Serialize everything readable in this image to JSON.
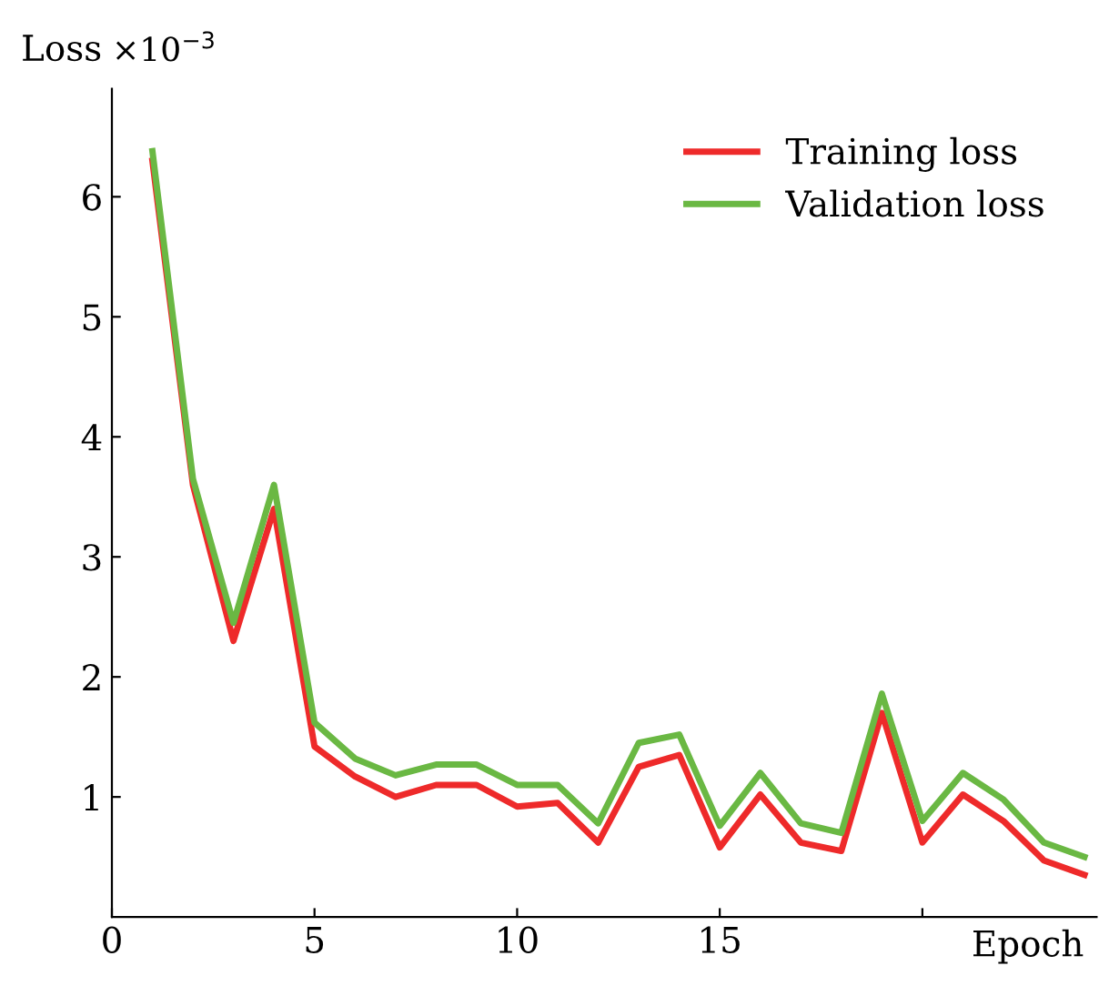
{
  "chart_data": {
    "type": "line",
    "xlabel": "Epoch",
    "ylabel": "Loss",
    "annotations": [
      "×10$^{−3}$"
    ],
    "x": [
      1,
      2,
      3,
      4,
      5,
      6,
      7,
      8,
      9,
      10,
      11,
      12,
      13,
      14,
      15,
      16,
      17,
      18,
      19,
      20,
      21,
      22,
      23,
      24
    ],
    "series": [
      {
        "name": "Training loss",
        "color": "#ee2a2a",
        "values": [
          6.3,
          3.6,
          2.3,
          3.4,
          1.42,
          1.17,
          1.0,
          1.1,
          1.1,
          0.92,
          0.95,
          0.62,
          1.25,
          1.35,
          0.58,
          1.02,
          0.62,
          0.55,
          1.7,
          0.62,
          1.02,
          0.8,
          0.47,
          0.35
        ]
      },
      {
        "name": "Validation loss",
        "color": "#6ab843",
        "values": [
          6.38,
          3.65,
          2.45,
          3.6,
          1.62,
          1.32,
          1.18,
          1.27,
          1.27,
          1.1,
          1.1,
          0.78,
          1.45,
          1.52,
          0.76,
          1.2,
          0.78,
          0.7,
          1.86,
          0.8,
          1.2,
          0.98,
          0.62,
          0.5
        ]
      }
    ],
    "xlim": [
      0,
      24.3
    ],
    "ylim": [
      0,
      6.9
    ],
    "xticks": [
      0,
      5,
      10,
      15,
      {
        "value": 20,
        "label": null
      }
    ],
    "yticks": [
      1,
      2,
      3,
      4,
      5,
      6
    ],
    "legend": "top right",
    "grid": false,
    "marker": "none",
    "line_style": "solid"
  }
}
